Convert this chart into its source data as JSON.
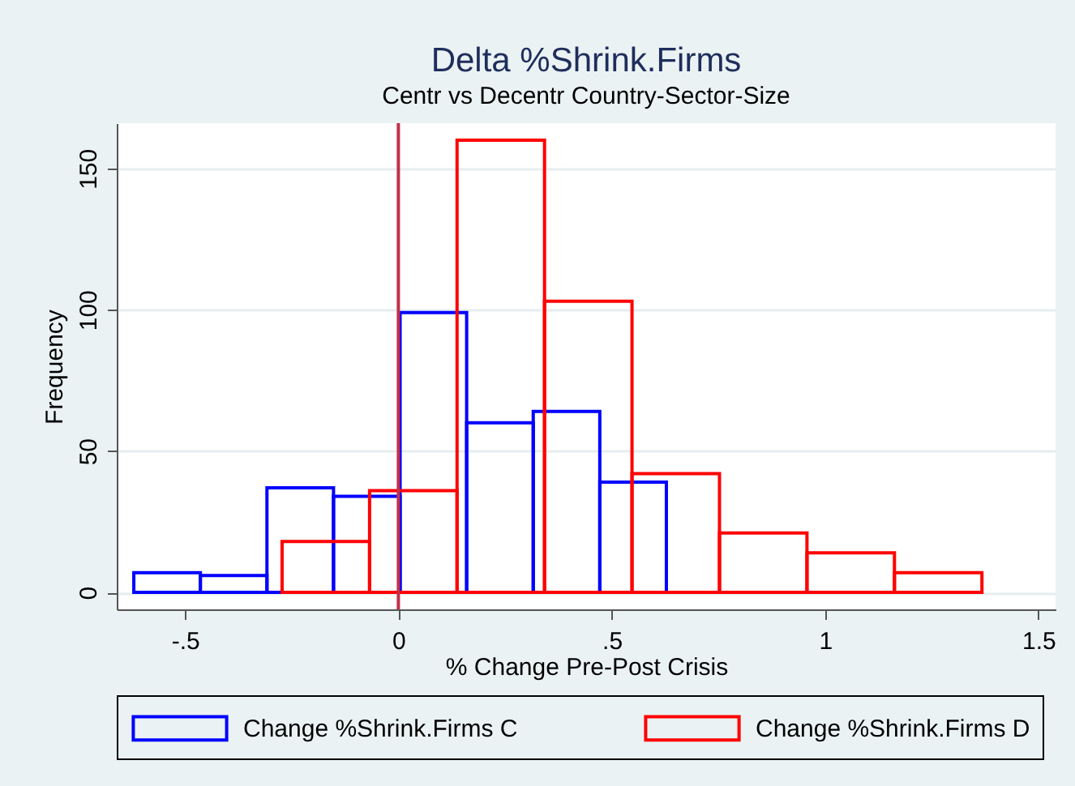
{
  "chart_data": {
    "type": "bar",
    "title": "Delta %Shrink.Firms",
    "subtitle": "Centr vs Decentr Country-Sector-Size",
    "xlabel": "% Change Pre-Post Crisis",
    "ylabel": "Frequency",
    "series": [
      {
        "name": "Change %Shrink.Firms C",
        "color": "#0000ff",
        "x": [
          -0.542,
          -0.386,
          -0.23,
          -0.074,
          0.082,
          0.238,
          0.394,
          0.55
        ],
        "values": [
          7,
          6,
          37,
          34,
          99,
          60,
          64,
          39
        ]
      },
      {
        "name": "Change %Shrink.Firms D",
        "color": "#ff0000",
        "x": [
          -0.17,
          0.035,
          0.24,
          0.445,
          0.65,
          0.855,
          1.06,
          1.265
        ],
        "values": [
          18,
          36,
          160,
          103,
          42,
          21,
          14,
          7
        ]
      }
    ],
    "xlim": [
      -0.66,
      1.54
    ],
    "ylim": [
      -6,
      166
    ],
    "xticks": [
      {
        "value": -0.5,
        "label": "-.5"
      },
      0,
      {
        "value": 0.5,
        "label": ".5"
      },
      1,
      1.5
    ],
    "yticks": [
      0,
      50,
      100,
      150
    ],
    "grid": "y",
    "legend": "bottom",
    "ref_lines": [
      {
        "axis": "x",
        "value": 0,
        "color": "#c0304a"
      }
    ]
  }
}
